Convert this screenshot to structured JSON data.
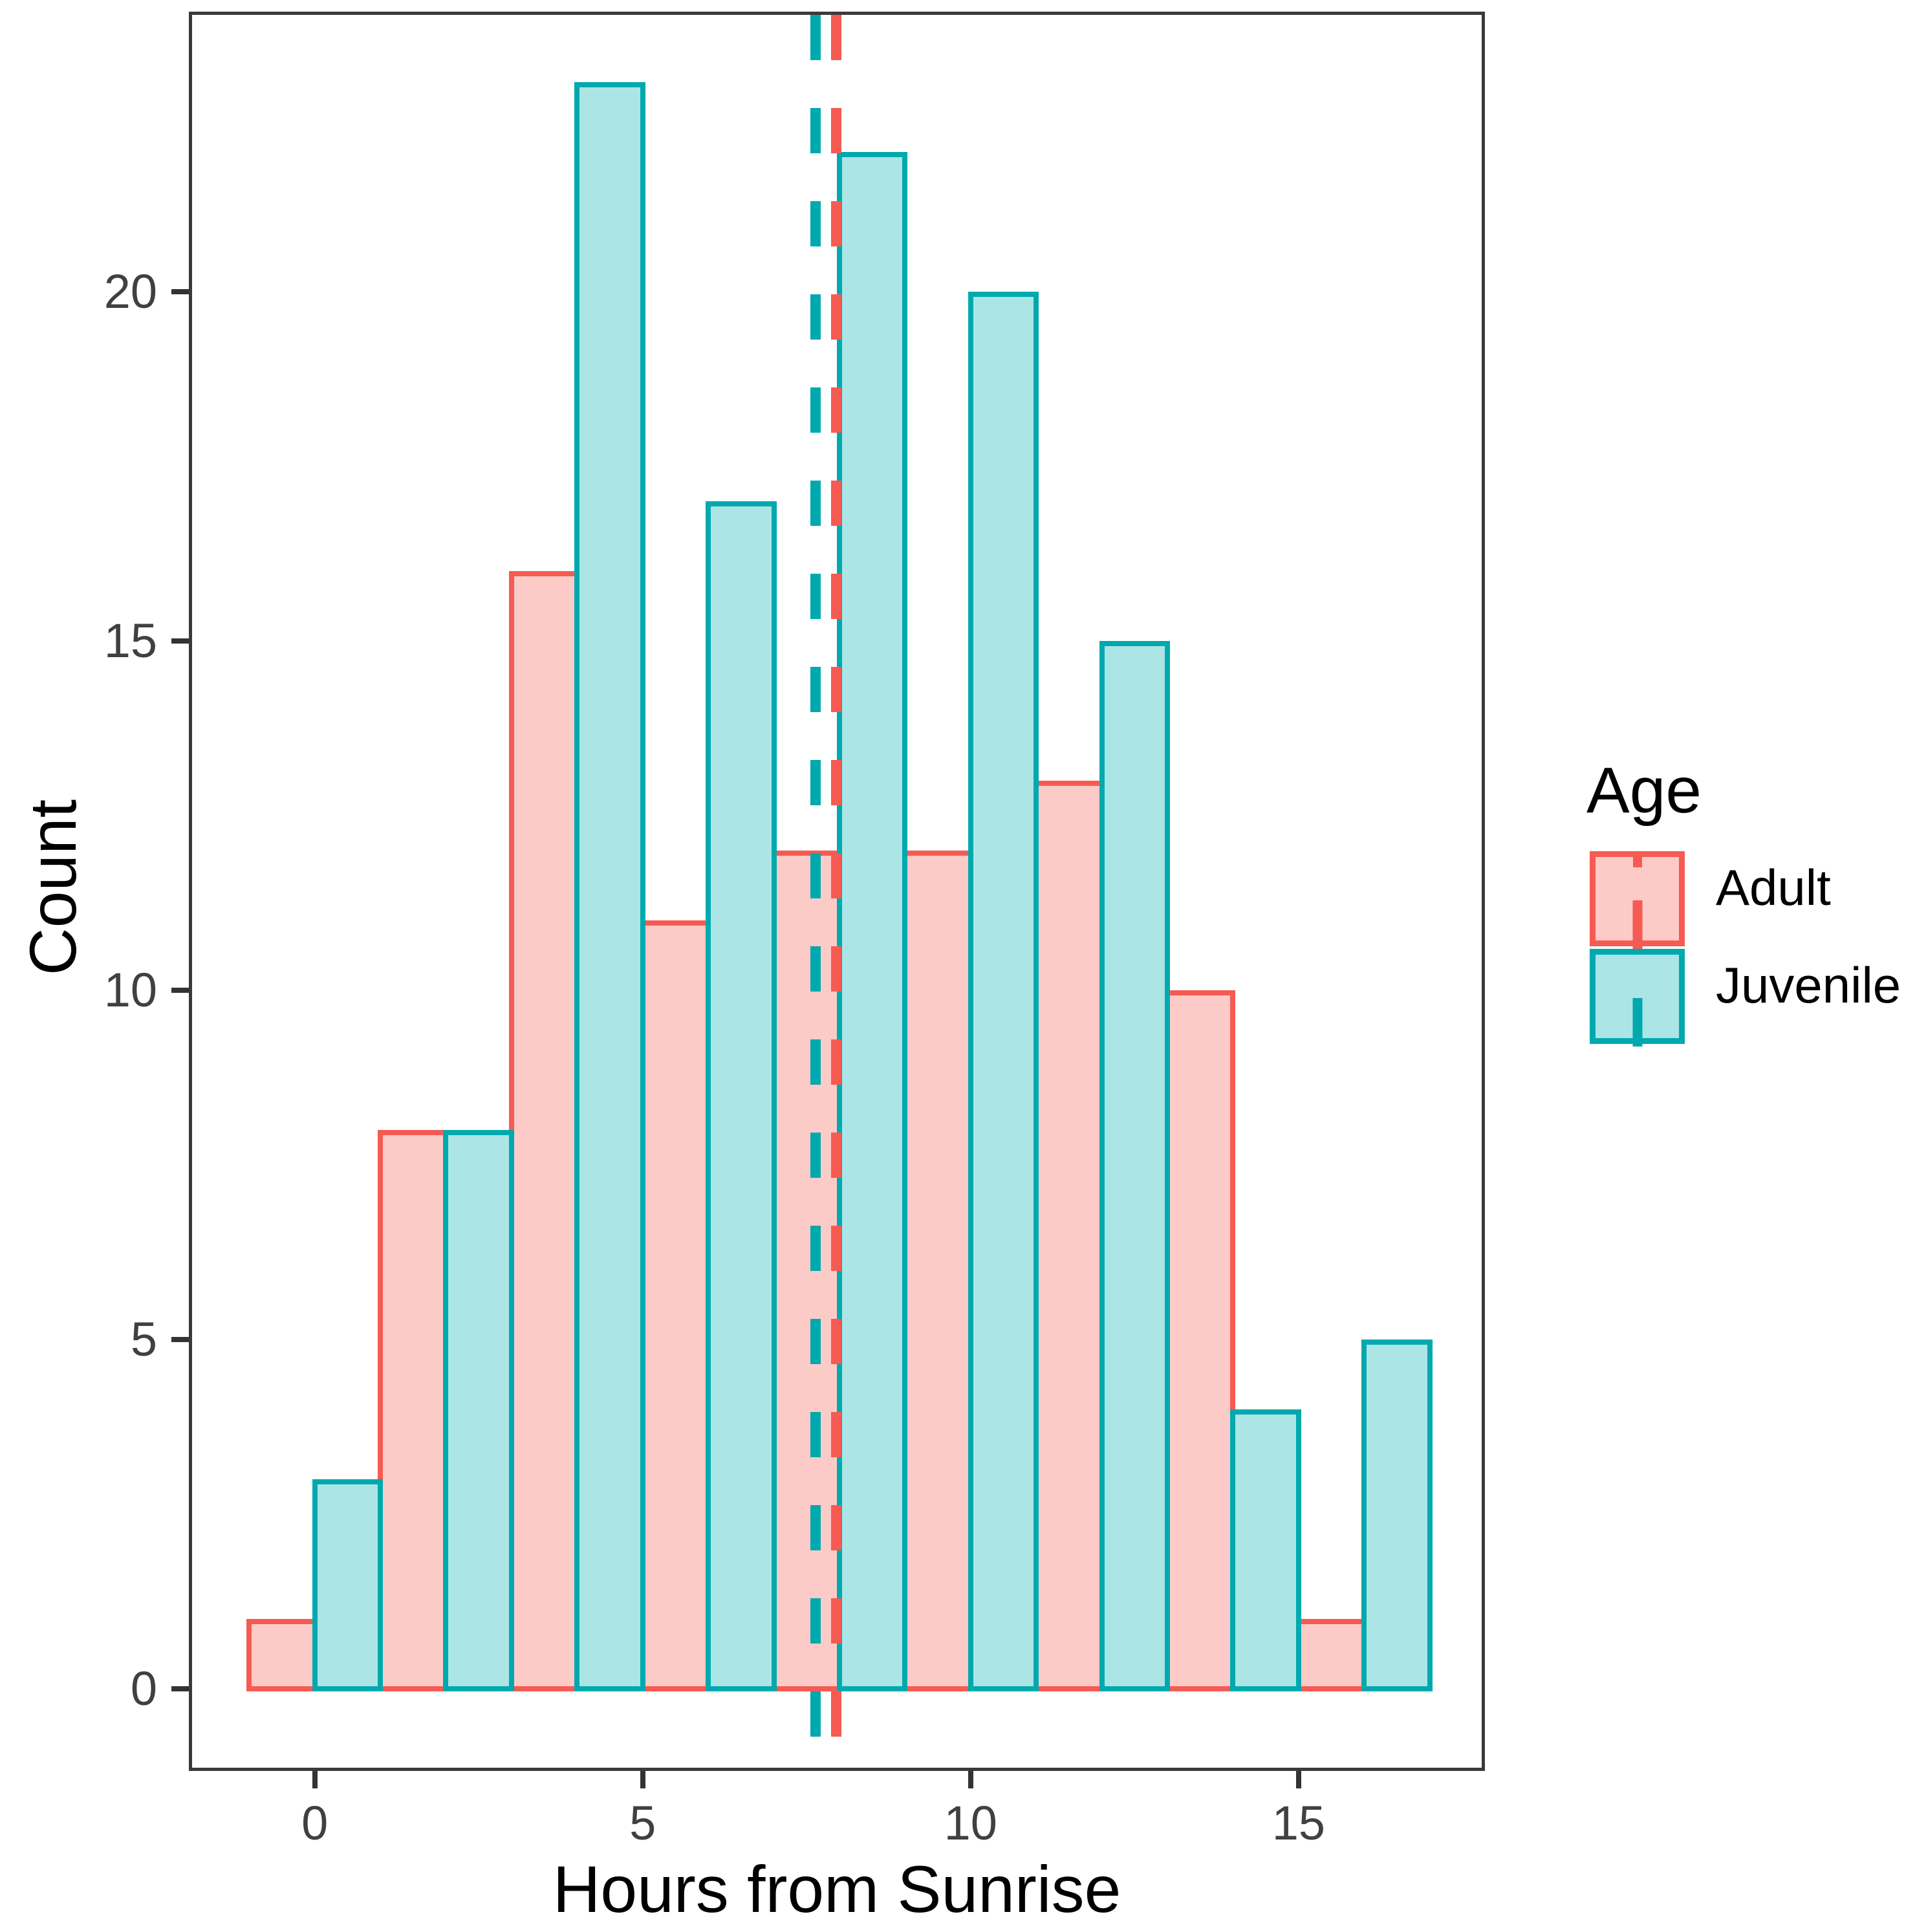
{
  "axis": {
    "x_title": "Hours from Sunrise",
    "y_title": "Count"
  },
  "legend": {
    "title": "Age",
    "items": [
      {
        "label": "Adult",
        "fill": "#FDCBC7",
        "stroke": "#F55B53"
      },
      {
        "label": "Juvenile",
        "fill": "#ACE5E6",
        "stroke": "#00A9AE"
      }
    ]
  },
  "chart_data": {
    "type": "bar",
    "subtype": "dodged histogram, bin width 2, bar width 1",
    "title": "",
    "xlabel": "Hours from Sunrise",
    "ylabel": "Count",
    "x_ticks": [
      0,
      5,
      10,
      15
    ],
    "y_ticks": [
      0,
      5,
      10,
      15,
      20
    ],
    "x_range": [
      -1.87,
      17.89
    ],
    "y_range": [
      -1.2,
      24.0
    ],
    "grid": "off",
    "legend_position": "right",
    "bar_width": 1,
    "series": [
      {
        "name": "Adult",
        "fill": "#FDCBC7",
        "stroke": "#F55B53",
        "bars": [
          {
            "x0": -1,
            "x1": 0,
            "count": 1
          },
          {
            "x0": 1,
            "x1": 2,
            "count": 8
          },
          {
            "x0": 3,
            "x1": 4,
            "count": 16
          },
          {
            "x0": 5,
            "x1": 6,
            "count": 11
          },
          {
            "x0": 7,
            "x1": 8,
            "count": 12
          },
          {
            "x0": 9,
            "x1": 10,
            "count": 12
          },
          {
            "x0": 11,
            "x1": 12,
            "count": 13
          },
          {
            "x0": 13,
            "x1": 14,
            "count": 10
          },
          {
            "x0": 15,
            "x1": 16,
            "count": 1
          }
        ]
      },
      {
        "name": "Juvenile",
        "fill": "#ACE5E6",
        "stroke": "#00A9AE",
        "bars": [
          {
            "x0": 0,
            "x1": 1,
            "count": 3
          },
          {
            "x0": 2,
            "x1": 3,
            "count": 8
          },
          {
            "x0": 4,
            "x1": 5,
            "count": 23
          },
          {
            "x0": 6,
            "x1": 7,
            "count": 17
          },
          {
            "x0": 8,
            "x1": 9,
            "count": 22
          },
          {
            "x0": 10,
            "x1": 11,
            "count": 20
          },
          {
            "x0": 12,
            "x1": 13,
            "count": 15
          },
          {
            "x0": 14,
            "x1": 15,
            "count": 4
          },
          {
            "x0": 16,
            "x1": 17,
            "count": 5
          }
        ]
      }
    ],
    "vlines": [
      {
        "x": 7.64,
        "color": "#00A9AE",
        "style": "dashed",
        "series": "Juvenile"
      },
      {
        "x": 7.95,
        "color": "#F55B53",
        "style": "dashed",
        "series": "Adult"
      }
    ]
  }
}
